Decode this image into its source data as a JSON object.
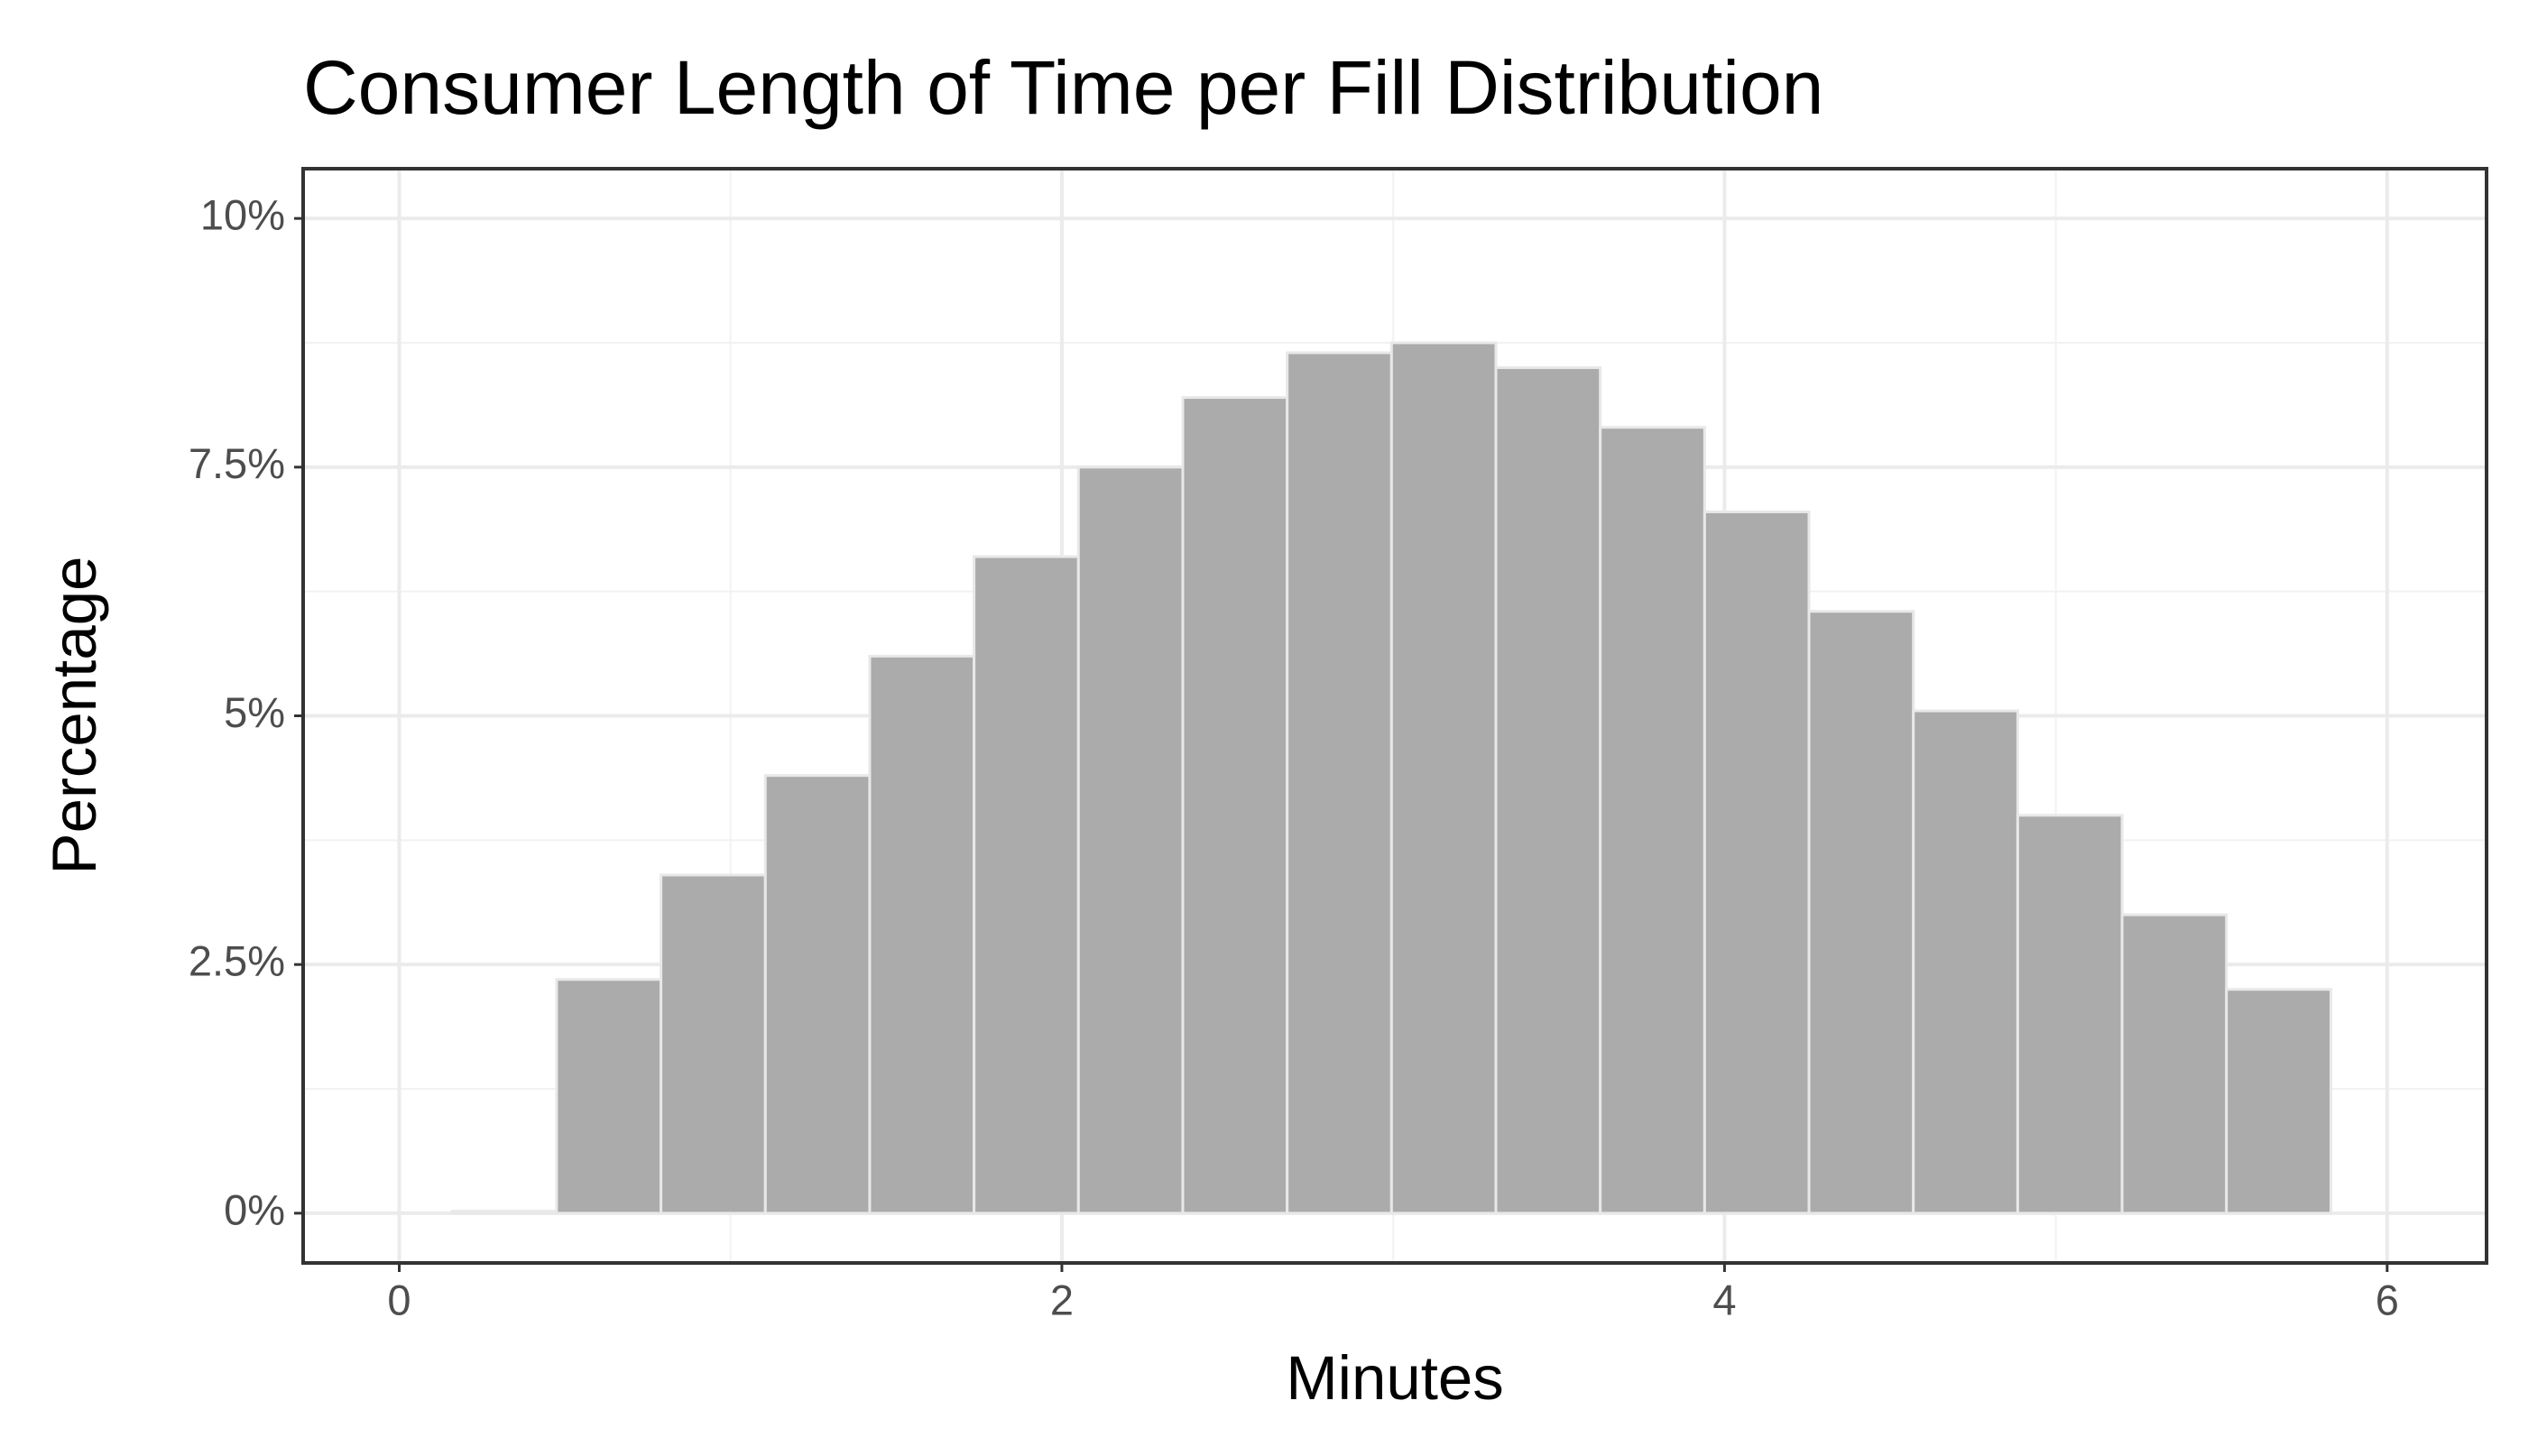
{
  "chart_data": {
    "type": "histogram",
    "title": "Consumer Length of Time per Fill Distribution",
    "x_label": "Minutes",
    "y_label": "Percentage",
    "bins": [
      0.16,
      0.475,
      0.79,
      1.105,
      1.42,
      1.735,
      2.05,
      2.365,
      2.68,
      2.995,
      3.31,
      3.625,
      3.94,
      4.255,
      4.57,
      4.885,
      5.2,
      5.515,
      5.83
    ],
    "values": [
      0.02,
      2.35,
      3.4,
      4.4,
      5.6,
      6.6,
      7.5,
      8.2,
      8.65,
      8.75,
      8.5,
      7.9,
      7.05,
      6.05,
      5.05,
      4.0,
      3.0,
      2.25
    ],
    "color": "#ababab",
    "xlim": [
      -0.29,
      6.3
    ],
    "xticks": [
      0,
      2,
      4,
      6
    ],
    "ylim": [
      -0.5,
      10.5
    ],
    "yticks": [
      {
        "value": 0,
        "label": "0%"
      },
      {
        "value": 2.5,
        "label": "2.5%"
      },
      {
        "value": 5,
        "label": "5%"
      },
      {
        "value": 7.5,
        "label": "7.5%"
      },
      {
        "value": 10,
        "label": "10%"
      }
    ],
    "grid": true
  }
}
